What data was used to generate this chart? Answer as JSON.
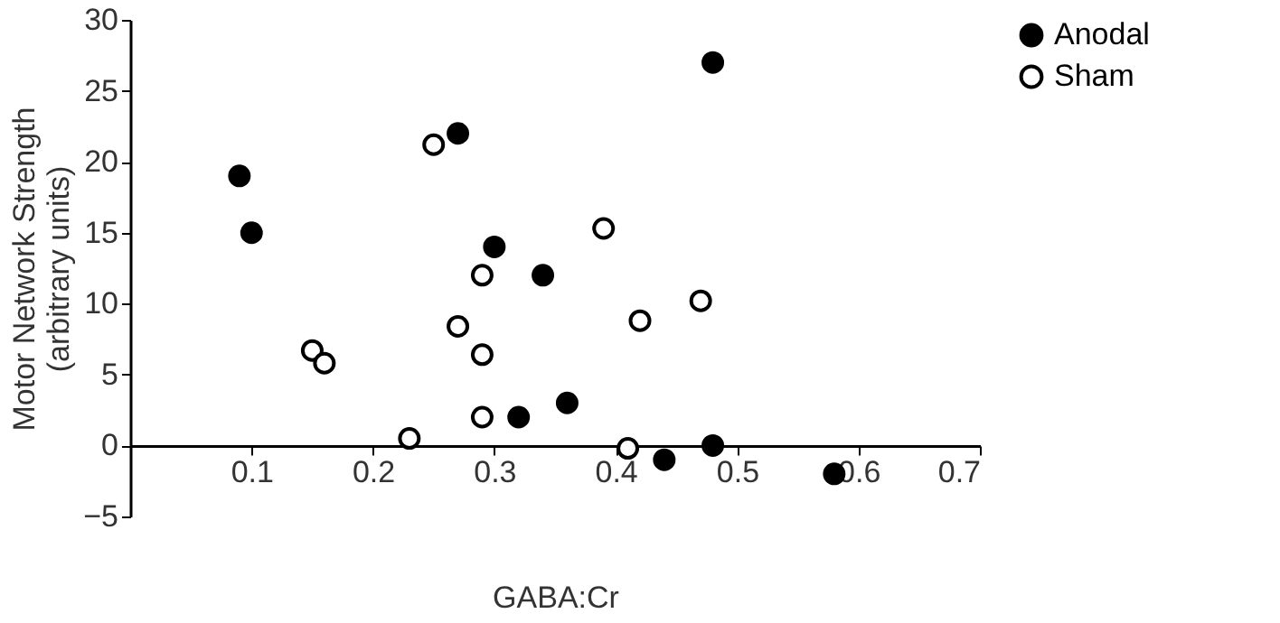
{
  "chart_data": {
    "type": "scatter",
    "xlabel": "GABA:Cr",
    "ylabel": "Motor Network Strength\n(arbitrary units)",
    "xlim": [
      0,
      0.7
    ],
    "xticks": [
      0.1,
      0.2,
      0.3,
      0.4,
      0.5,
      0.6,
      0.7
    ],
    "ylim": [
      -5,
      30
    ],
    "yticks": [
      -5,
      0,
      5,
      10,
      15,
      20,
      25,
      30
    ],
    "grid": false,
    "legend": "top right",
    "marker": "circle",
    "series": [
      {
        "name": "Anodal",
        "color": "#000000",
        "x": [
          0.09,
          0.1,
          0.27,
          0.3,
          0.34,
          0.32,
          0.36,
          0.44,
          0.48,
          0.48,
          0.58
        ],
        "values": [
          19,
          15,
          22,
          14,
          12,
          2,
          3,
          -1,
          0,
          27,
          -2
        ]
      },
      {
        "name": "Sham",
        "color": "#000000",
        "x": [
          0.25,
          0.29,
          0.27,
          0.29,
          0.29,
          0.15,
          0.16,
          0.23,
          0.39,
          0.42,
          0.47,
          0.41
        ],
        "values": [
          21.2,
          12,
          8.4,
          6.4,
          2,
          6.7,
          5.8,
          0.5,
          15.3,
          8.8,
          10.2,
          -0.2
        ]
      }
    ]
  }
}
